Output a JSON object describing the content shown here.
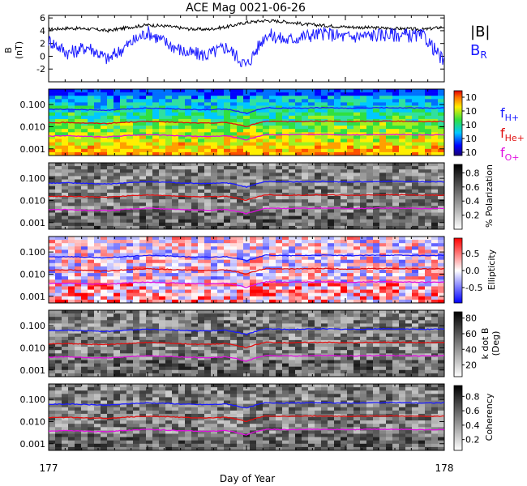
{
  "title": "ACE Mag 0021-06-26",
  "x_axis": {
    "label": "Day of Year",
    "range": [
      177,
      178
    ],
    "tick_labels": [
      "177",
      "178"
    ]
  },
  "legend": {
    "b_total": "|B|",
    "b_radial": "B",
    "b_radial_sub": "R",
    "f_h": "f",
    "f_h_sub": "H+",
    "f_he": "f",
    "f_he_sub": "He+",
    "f_o": "f",
    "f_o_sub": "O+"
  },
  "colors": {
    "b_total": "#000000",
    "b_radial": "#1a1aff",
    "f_h": "#1a1aff",
    "f_he": "#e01010",
    "f_o": "#e010e0"
  },
  "freq_tick_labels": [
    "0.100",
    "0.010",
    "0.001"
  ],
  "chart_data": [
    {
      "type": "line",
      "panel": "magnetic-field",
      "ylabel": "B",
      "ylabel_unit": "(nT)",
      "ylim": [
        -4,
        6.4
      ],
      "y_ticks": [
        "6",
        "4",
        "2",
        "0",
        "-2"
      ],
      "y_tick_values": [
        6,
        4,
        2,
        0,
        -2
      ],
      "x": [
        177.0,
        177.05,
        177.1,
        177.15,
        177.2,
        177.25,
        177.3,
        177.35,
        177.4,
        177.45,
        177.5,
        177.55,
        177.6,
        177.65,
        177.7,
        177.75,
        177.8,
        177.85,
        177.9,
        177.95,
        178.0
      ],
      "series": [
        {
          "name": "|B|",
          "values": [
            4.2,
            4.4,
            4.3,
            4.0,
            4.5,
            4.9,
            4.7,
            4.3,
            4.2,
            4.6,
            5.3,
            5.6,
            5.4,
            5.0,
            4.8,
            4.6,
            4.5,
            4.4,
            4.3,
            4.2,
            4.6
          ]
        },
        {
          "name": "B_R",
          "values": [
            2.5,
            0.5,
            1.5,
            -0.5,
            1.8,
            3.8,
            2.0,
            0.5,
            0.2,
            1.5,
            -1.5,
            3.5,
            2.5,
            3.2,
            3.6,
            3.0,
            3.2,
            3.4,
            3.3,
            3.1,
            -1.0
          ]
        }
      ]
    },
    {
      "type": "heatmap",
      "panel": "power-spectrum",
      "ylim_log": [
        0.0005,
        0.5
      ],
      "colorbar": {
        "ticks": [
          "10",
          "10",
          "10",
          "10",
          "10"
        ]
      },
      "lines": {
        "f_H": [
          0.06,
          0.062,
          0.058,
          0.055,
          0.063,
          0.07,
          0.066,
          0.06,
          0.058,
          0.062,
          0.04,
          0.072,
          0.068,
          0.07,
          0.072,
          0.068,
          0.07,
          0.072,
          0.071,
          0.069,
          0.07
        ],
        "f_He": [
          0.015,
          0.0155,
          0.0145,
          0.014,
          0.016,
          0.0175,
          0.0165,
          0.015,
          0.0145,
          0.0155,
          0.01,
          0.018,
          0.017,
          0.0175,
          0.018,
          0.017,
          0.0175,
          0.018,
          0.0178,
          0.0172,
          0.0175
        ],
        "f_O": [
          0.0038,
          0.0039,
          0.0036,
          0.0035,
          0.004,
          0.0044,
          0.0041,
          0.0038,
          0.0036,
          0.0039,
          0.0025,
          0.0045,
          0.0043,
          0.0044,
          0.0045,
          0.0043,
          0.0044,
          0.0045,
          0.0044,
          0.0043,
          0.0044
        ]
      }
    },
    {
      "type": "heatmap",
      "panel": "polarization",
      "colorbar_label": "% Polarization",
      "colorbar": {
        "ticks": [
          "0.8",
          "0.6",
          "0.4",
          "0.2"
        ],
        "tick_values": [
          0.8,
          0.6,
          0.4,
          0.2
        ],
        "range": [
          0,
          0.92
        ]
      }
    },
    {
      "type": "heatmap",
      "panel": "ellipticity",
      "colorbar_label": "Ellipticity",
      "colorbar": {
        "ticks": [
          "0.5",
          "0.0",
          "-0.5"
        ],
        "tick_values": [
          0.5,
          0.0,
          -0.5
        ],
        "range": [
          -0.95,
          0.95
        ]
      }
    },
    {
      "type": "heatmap",
      "panel": "k-dot-b",
      "colorbar_label": "k dot B",
      "colorbar_unit": "(Deg)",
      "colorbar": {
        "ticks": [
          "80",
          "60",
          "40",
          "20"
        ],
        "tick_values": [
          80,
          60,
          40,
          20
        ],
        "range": [
          5,
          88
        ]
      }
    },
    {
      "type": "heatmap",
      "panel": "coherency",
      "colorbar_label": "Coherency",
      "colorbar": {
        "ticks": [
          "0.8",
          "0.6",
          "0.4",
          "0.2"
        ],
        "tick_values": [
          0.8,
          0.6,
          0.4,
          0.2
        ],
        "range": [
          0.05,
          0.95
        ]
      }
    }
  ]
}
